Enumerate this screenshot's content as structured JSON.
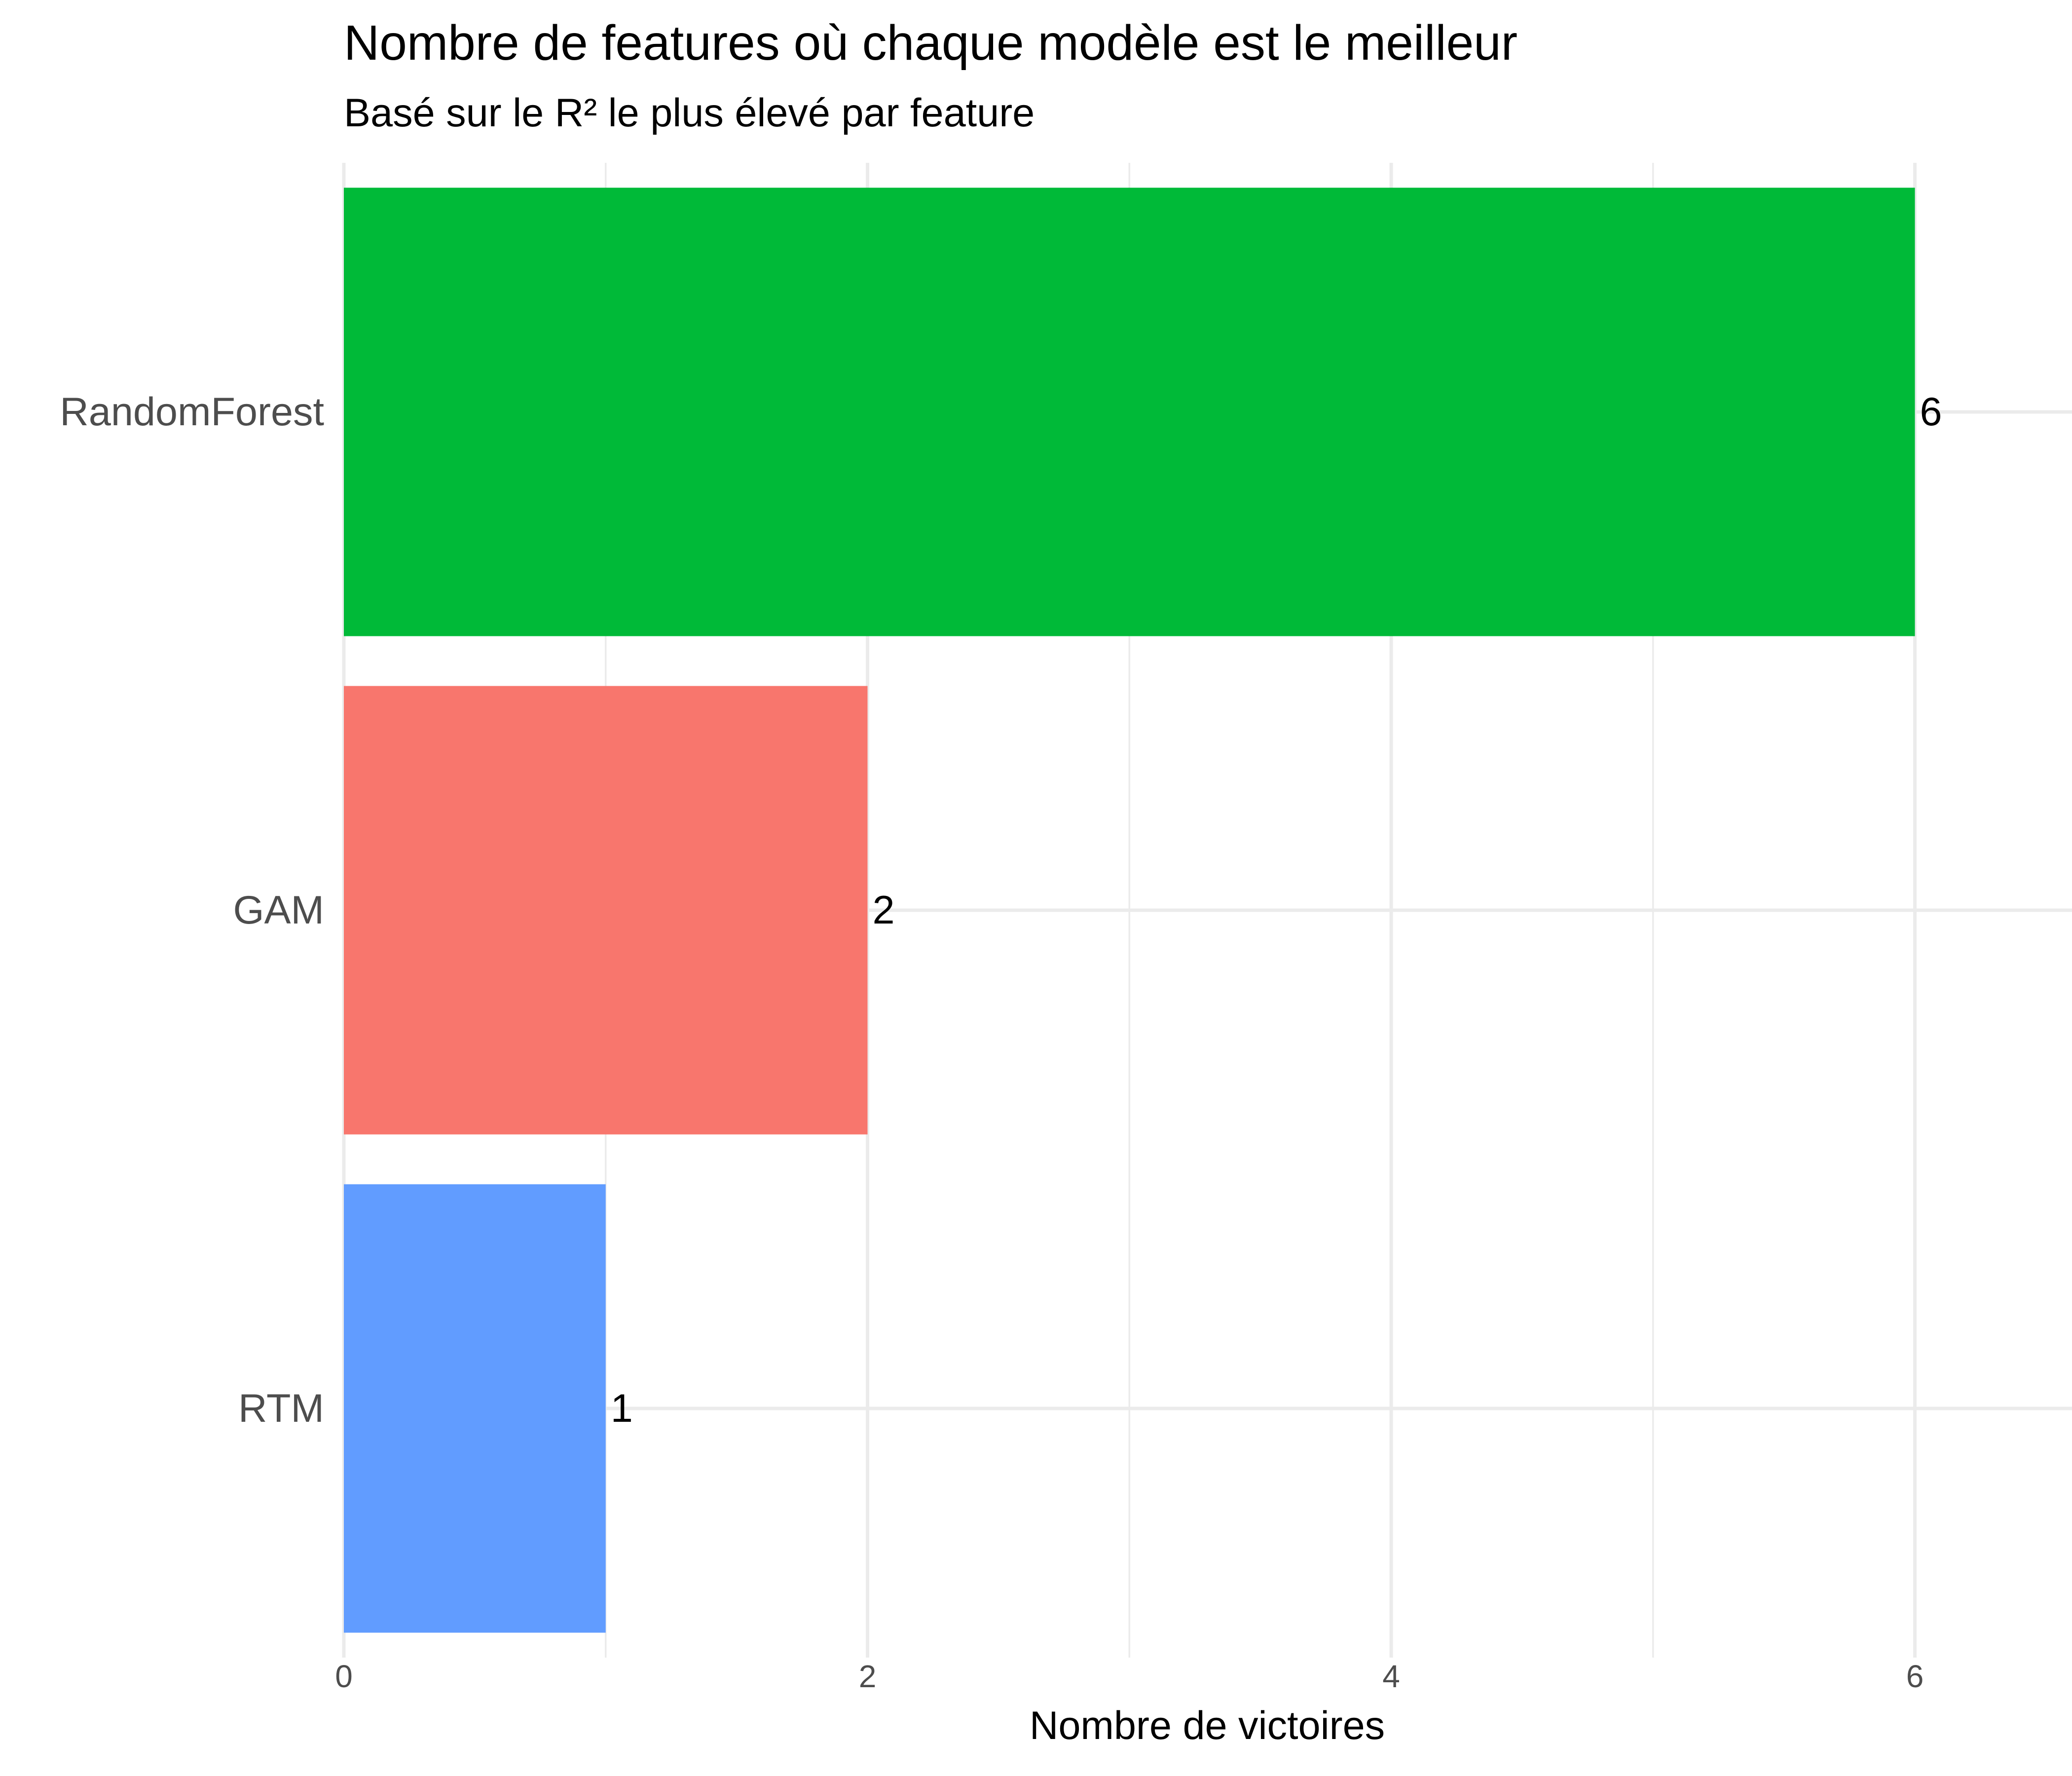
{
  "chart_data": {
    "type": "bar",
    "orientation": "horizontal",
    "title": "Nombre de features où chaque modèle est le meilleur",
    "subtitle": "Basé sur le R² le plus élevé par feature",
    "xlabel": "Nombre de victoires",
    "ylabel": "",
    "xlim": [
      0,
      6.6
    ],
    "x_ticks": [
      0,
      2,
      4,
      6
    ],
    "grid": true,
    "legend": "none",
    "categories": [
      "RandomForest",
      "GAM",
      "RTM"
    ],
    "values": [
      6,
      2,
      1
    ],
    "colors": [
      "#00BA38",
      "#F8766D",
      "#619CFF"
    ],
    "data_labels": [
      "6",
      "2",
      "1"
    ]
  }
}
